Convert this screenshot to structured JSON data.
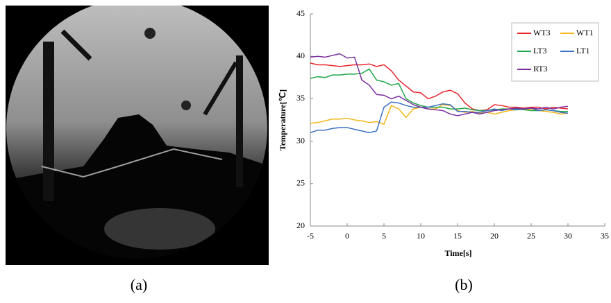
{
  "chart_data": {
    "type": "line",
    "y_label": "Temperature[℃]",
    "x_label": "Time[s]",
    "x": [
      -5,
      -4,
      -3,
      -2,
      -1,
      0,
      1,
      2,
      3,
      4,
      5,
      6,
      7,
      8,
      9,
      10,
      11,
      12,
      13,
      14,
      15,
      16,
      17,
      18,
      19,
      20,
      21,
      22,
      23,
      24,
      25,
      26,
      27,
      28,
      29,
      30
    ],
    "series": [
      {
        "name": "WT3",
        "color": "#e8232a",
        "values": [
          39.2,
          39.0,
          39.0,
          38.9,
          38.8,
          38.9,
          39.0,
          39.0,
          39.1,
          38.8,
          39.0,
          38.3,
          37.2,
          36.5,
          35.8,
          35.7,
          35.0,
          35.3,
          35.8,
          36.0,
          35.6,
          34.5,
          33.8,
          33.6,
          33.7,
          34.3,
          34.2,
          34.0,
          34.0,
          33.9,
          34.0,
          34.0,
          33.8,
          34.0,
          33.9,
          33.8
        ]
      },
      {
        "name": "WT1",
        "color": "#f2b61b",
        "values": [
          32.1,
          32.2,
          32.4,
          32.6,
          32.6,
          32.7,
          32.5,
          32.4,
          32.2,
          32.3,
          32.0,
          34.2,
          33.8,
          32.8,
          33.8,
          34.0,
          33.8,
          33.8,
          34.3,
          34.2,
          33.6,
          33.4,
          33.5,
          33.3,
          33.4,
          33.2,
          33.4,
          33.6,
          33.7,
          33.7,
          33.8,
          33.6,
          33.5,
          33.4,
          33.2,
          33.3
        ]
      },
      {
        "name": "LT3",
        "color": "#1fa64a",
        "values": [
          37.4,
          37.6,
          37.5,
          37.8,
          37.8,
          37.9,
          37.9,
          38.0,
          38.5,
          37.2,
          37.0,
          36.6,
          36.8,
          35.0,
          34.5,
          34.2,
          34.0,
          34.0,
          34.0,
          33.8,
          33.8,
          33.9,
          33.7,
          33.6,
          33.6,
          33.7,
          33.8,
          33.8,
          33.8,
          33.7,
          33.6,
          33.6,
          33.7,
          33.6,
          33.5,
          33.5
        ]
      },
      {
        "name": "LT1",
        "color": "#3a6fc4",
        "values": [
          31.0,
          31.3,
          31.3,
          31.5,
          31.6,
          31.6,
          31.4,
          31.2,
          31.0,
          31.2,
          34.0,
          34.6,
          34.5,
          34.2,
          34.0,
          34.0,
          34.0,
          34.2,
          34.4,
          34.3,
          33.5,
          33.5,
          33.4,
          33.4,
          33.6,
          33.8,
          33.6,
          33.8,
          33.7,
          33.8,
          33.9,
          33.6,
          33.7,
          33.6,
          33.4,
          33.3
        ]
      },
      {
        "name": "RT3",
        "color": "#7b2fa0",
        "values": [
          39.9,
          40.0,
          39.9,
          40.1,
          40.3,
          39.8,
          39.9,
          37.2,
          36.6,
          35.5,
          35.4,
          35.0,
          35.3,
          34.8,
          34.3,
          34.0,
          33.8,
          33.7,
          33.6,
          33.2,
          33.0,
          33.2,
          33.4,
          33.2,
          33.4,
          33.6,
          33.7,
          33.8,
          33.9,
          33.8,
          33.9,
          33.8,
          34.0,
          33.8,
          34.0,
          34.1
        ]
      }
    ],
    "xlim": [
      -5,
      35
    ],
    "xticks": [
      -5,
      0,
      5,
      10,
      15,
      20,
      25,
      30,
      35
    ],
    "ylim": [
      20,
      45
    ],
    "yticks": [
      20,
      25,
      30,
      35,
      40,
      45
    ],
    "grid": false,
    "legend": "upper right"
  },
  "panel_labels": [
    "(a)",
    "(b)"
  ]
}
